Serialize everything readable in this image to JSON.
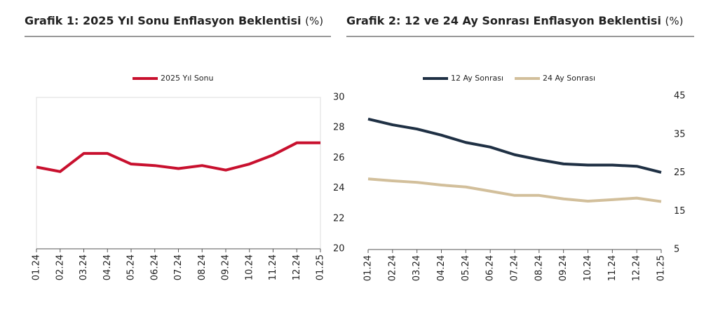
{
  "chart_data": [
    {
      "type": "line",
      "title": "Grafik 1: 2025 Yıl Sonu Enflasyon Beklentisi",
      "unit": "(%)",
      "categories": [
        "01.24",
        "02.24",
        "03.24",
        "04.24",
        "05.24",
        "06.24",
        "07.24",
        "08.24",
        "09.24",
        "10.24",
        "11.24",
        "12.24",
        "01.25"
      ],
      "series": [
        {
          "name": "2025 Yıl Sonu",
          "color": "#c8102e",
          "values": [
            25.4,
            25.1,
            26.3,
            26.3,
            25.6,
            25.5,
            25.3,
            25.5,
            25.2,
            25.6,
            26.2,
            27.0,
            27.0
          ]
        }
      ],
      "ylim": [
        20,
        30
      ],
      "yticks": [
        20,
        22,
        24,
        26,
        28,
        30
      ],
      "y_axis_side": "right",
      "legend": "top",
      "grid": false
    },
    {
      "type": "line",
      "title": "Grafik 2: 12 ve 24 Ay Sonrası Enflasyon Beklentisi",
      "unit": "(%)",
      "categories": [
        "01.24",
        "02.24",
        "03.24",
        "04.24",
        "05.24",
        "06.24",
        "07.24",
        "08.24",
        "09.24",
        "10.24",
        "11.24",
        "12.24",
        "01.25"
      ],
      "series": [
        {
          "name": "12 Ay Sonrası",
          "color": "#1f3044",
          "values": [
            39.0,
            37.5,
            36.4,
            34.8,
            32.9,
            31.7,
            29.7,
            28.4,
            27.3,
            27.0,
            27.0,
            26.7,
            25.1
          ]
        },
        {
          "name": "24 Ay Sonrası",
          "color": "#d2bf9b",
          "values": [
            23.4,
            22.9,
            22.5,
            21.8,
            21.3,
            20.2,
            19.1,
            19.1,
            18.2,
            17.6,
            18.0,
            18.4,
            17.5
          ]
        }
      ],
      "ylim": [
        5,
        45
      ],
      "yticks": [
        5,
        15,
        25,
        35,
        45
      ],
      "y_axis_side": "right",
      "legend": "top",
      "grid": false
    }
  ]
}
